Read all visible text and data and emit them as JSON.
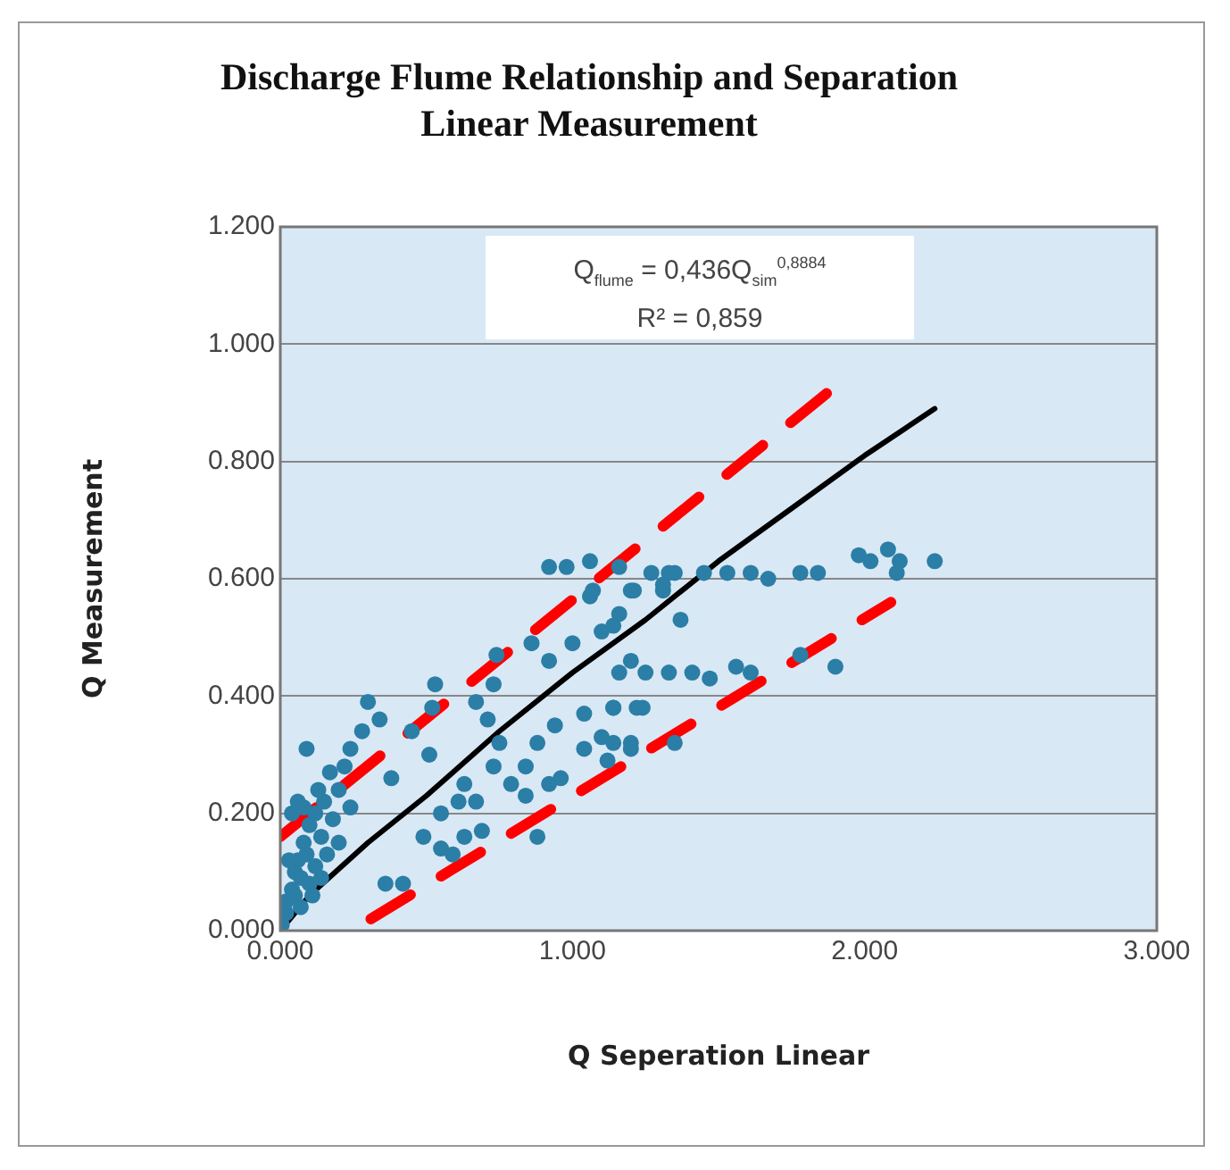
{
  "chart_data": {
    "type": "scatter",
    "title": "Discharge Flume Relationship and Separation Linear Measurement",
    "xlabel": "Q Seperation Linear",
    "ylabel": "Q Measurement",
    "annotations": [
      "Q$_{flume}$ = 0,436Q$_{sim}$$^{0,8884}$",
      "R² = 0,859"
    ],
    "xlim": [
      0,
      3
    ],
    "xticks": [
      {
        "value": 0,
        "label": "0.000"
      },
      {
        "value": 1,
        "label": "1.000"
      },
      {
        "value": 2,
        "label": "2.000"
      },
      {
        "value": 3,
        "label": "3.000"
      }
    ],
    "ylim": [
      0,
      1.2
    ],
    "yticks": [
      {
        "value": 0,
        "label": "0.000"
      },
      {
        "value": 0.2,
        "label": "0.200"
      },
      {
        "value": 0.4,
        "label": "0.400"
      },
      {
        "value": 0.6,
        "label": "0.600"
      },
      {
        "value": 0.8,
        "label": "0.800"
      },
      {
        "value": 1,
        "label": "1.000"
      },
      {
        "value": 1.2,
        "label": "1.200"
      }
    ],
    "grid": "y",
    "legend": false,
    "series": [
      {
        "color": "#2b7ea6",
        "marker": "circle",
        "x": [
          0.005,
          0.02,
          0.02,
          0.04,
          0.05,
          0.05,
          0.06,
          0.07,
          0.08,
          0.09,
          0.1,
          0.1,
          0.12,
          0.12,
          0.14,
          0.15,
          0.16,
          0.18,
          0.2,
          0.2,
          0.22,
          0.24,
          0.03,
          0.04,
          0.06,
          0.08,
          0.13,
          0.17,
          0.07,
          0.11,
          0.14,
          0.09,
          0.3,
          0.34,
          0.28,
          0.24,
          0.38,
          0.36,
          0.42,
          0.45,
          0.51,
          0.52,
          0.53,
          0.49,
          0.55,
          0.59,
          0.63,
          0.61,
          0.55,
          0.67,
          0.63,
          0.69,
          0.67,
          0.71,
          0.73,
          0.74,
          0.75,
          0.73,
          0.79,
          0.84,
          0.84,
          0.88,
          0.88,
          0.92,
          0.94,
          0.96,
          0.86,
          0.92,
          1.0,
          1.04,
          1.04,
          1.1,
          1.14,
          1.1,
          1.2,
          1.24,
          1.2,
          1.06,
          1.16,
          1.37,
          0.92,
          0.98,
          1.06,
          1.07,
          1.16,
          1.2,
          1.27,
          1.31,
          1.35,
          1.45,
          1.33,
          1.21,
          1.31,
          1.53,
          1.61,
          1.67,
          1.78,
          1.84,
          1.98,
          2.02,
          2.08,
          2.12,
          2.11,
          2.24,
          1.14,
          1.16,
          1.25,
          1.33,
          1.41,
          1.47,
          1.56,
          1.61,
          1.78,
          1.9,
          1.14,
          1.22,
          1.14,
          1.2,
          1.35,
          1.12
        ],
        "values": [
          0.01,
          0.03,
          0.05,
          0.07,
          0.06,
          0.1,
          0.12,
          0.09,
          0.15,
          0.13,
          0.18,
          0.08,
          0.2,
          0.11,
          0.16,
          0.22,
          0.13,
          0.19,
          0.24,
          0.15,
          0.28,
          0.21,
          0.12,
          0.2,
          0.22,
          0.21,
          0.24,
          0.27,
          0.04,
          0.06,
          0.09,
          0.31,
          0.39,
          0.36,
          0.34,
          0.31,
          0.26,
          0.08,
          0.08,
          0.34,
          0.3,
          0.38,
          0.42,
          0.16,
          0.14,
          0.13,
          0.25,
          0.22,
          0.2,
          0.22,
          0.16,
          0.17,
          0.39,
          0.36,
          0.42,
          0.47,
          0.32,
          0.28,
          0.25,
          0.28,
          0.23,
          0.32,
          0.16,
          0.25,
          0.35,
          0.26,
          0.49,
          0.46,
          0.49,
          0.37,
          0.31,
          0.33,
          0.38,
          0.51,
          0.46,
          0.38,
          0.32,
          0.57,
          0.54,
          0.53,
          0.62,
          0.62,
          0.63,
          0.58,
          0.62,
          0.58,
          0.61,
          0.58,
          0.61,
          0.61,
          0.61,
          0.58,
          0.59,
          0.61,
          0.61,
          0.6,
          0.61,
          0.61,
          0.64,
          0.63,
          0.65,
          0.63,
          0.61,
          0.63,
          0.52,
          0.44,
          0.44,
          0.44,
          0.44,
          0.43,
          0.45,
          0.44,
          0.47,
          0.45,
          0.38,
          0.38,
          0.32,
          0.31,
          0.32,
          0.29
        ]
      },
      {
        "type": "line",
        "color": "#000000",
        "marker": "none",
        "line_style": "solid",
        "x": [
          0,
          0.05,
          0.1,
          0.2,
          0.3,
          0.5,
          0.75,
          1.0,
          1.25,
          1.5,
          1.75,
          2.0,
          2.24
        ],
        "values": [
          0,
          0.03,
          0.06,
          0.105,
          0.15,
          0.23,
          0.34,
          0.44,
          0.53,
          0.63,
          0.72,
          0.81,
          0.89
        ]
      },
      {
        "type": "line",
        "color": "#ff0000",
        "marker": "none",
        "line_style": "dashed",
        "x": [
          0,
          1.88
        ],
        "values": [
          0.16,
          0.92
        ]
      },
      {
        "type": "line",
        "color": "#ff0000",
        "marker": "none",
        "line_style": "dashed",
        "x": [
          0.31,
          2.09
        ],
        "values": [
          0.02,
          0.56
        ]
      }
    ]
  }
}
